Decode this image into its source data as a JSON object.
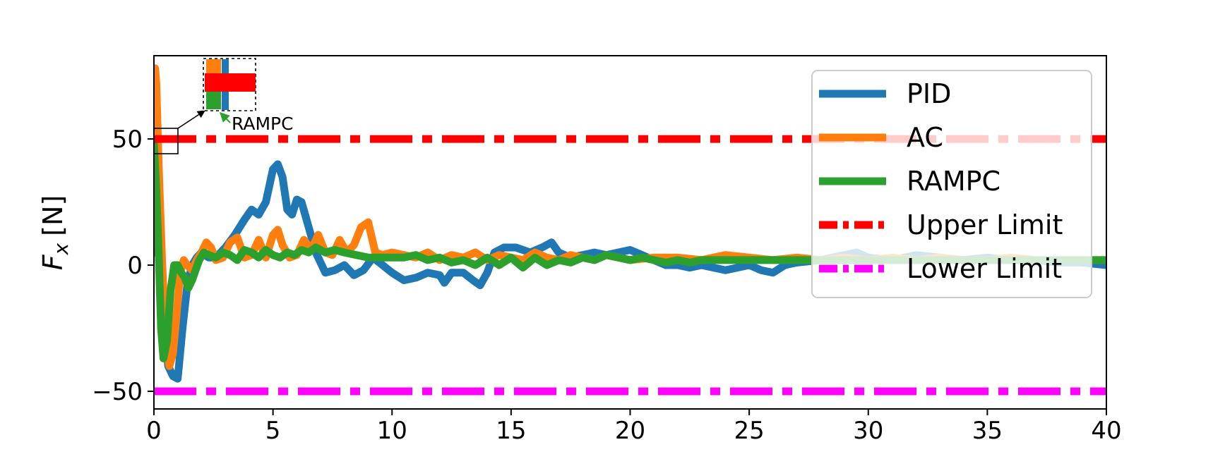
{
  "chart_data": {
    "type": "line",
    "title": "",
    "xlabel": "",
    "ylabel_main": "F",
    "ylabel_sub": "x",
    "ylabel_unit": "[N]",
    "xlim": [
      0,
      40
    ],
    "ylim": [
      -57,
      83
    ],
    "xticks": [
      0,
      5,
      10,
      15,
      20,
      25,
      30,
      35,
      40
    ],
    "yticks": [
      -50,
      0,
      50
    ],
    "ytick_labels": [
      "−50",
      "0",
      "50"
    ],
    "grid": false,
    "legend_position": "top-right",
    "series": [
      {
        "name": "PID",
        "color": "#1f77b4",
        "x": [
          0,
          0.1,
          0.2,
          0.3,
          0.45,
          0.6,
          0.8,
          1.0,
          1.2,
          1.4,
          1.6,
          1.8,
          2.0,
          2.3,
          2.6,
          3.0,
          3.4,
          3.8,
          4.1,
          4.4,
          4.7,
          5.0,
          5.2,
          5.4,
          5.6,
          5.8,
          6.0,
          6.2,
          6.5,
          6.8,
          7.2,
          7.6,
          8.0,
          8.4,
          8.8,
          9.2,
          9.6,
          10.0,
          10.5,
          11.0,
          11.5,
          12.0,
          12.2,
          12.5,
          13.0,
          13.4,
          13.7,
          14.0,
          14.3,
          14.7,
          15.2,
          15.8,
          16.3,
          16.7,
          17.0,
          17.5,
          18.0,
          18.5,
          19.0,
          19.5,
          20.0,
          20.5,
          21.0,
          21.5,
          22.0,
          22.5,
          23.0,
          23.5,
          24.0,
          24.5,
          25.0,
          25.5,
          26.0,
          26.5,
          27.0,
          28.0,
          29.0,
          29.5,
          30.0,
          31.0,
          32.0,
          33.0,
          34.0,
          35.0,
          36.0,
          37.0,
          38.0,
          39.0,
          40.0
        ],
        "y": [
          5,
          40,
          30,
          -5,
          -25,
          -40,
          -44,
          -45,
          -25,
          -8,
          0,
          3,
          5,
          3,
          3,
          7,
          12,
          18,
          22,
          20,
          25,
          38,
          40,
          35,
          22,
          20,
          26,
          25,
          15,
          5,
          -3,
          -2,
          0,
          -4,
          -2,
          3,
          0,
          -3,
          -6,
          -5,
          -3,
          -4,
          -7,
          -3,
          -3,
          -6,
          -8,
          -3,
          5,
          7,
          7,
          5,
          7,
          9,
          5,
          3,
          4,
          5,
          4,
          5,
          6,
          4,
          2,
          0,
          0,
          -1,
          0,
          -1,
          -2,
          -1,
          0,
          -2,
          -3,
          0,
          1,
          2,
          4,
          5,
          3,
          2,
          4,
          3,
          2,
          3,
          2,
          2,
          1,
          1,
          0
        ]
      },
      {
        "name": "AC",
        "color": "#ff7f0e",
        "x": [
          0,
          0.05,
          0.1,
          0.2,
          0.35,
          0.5,
          0.65,
          0.8,
          0.95,
          1.1,
          1.25,
          1.4,
          1.6,
          1.8,
          2.0,
          2.2,
          2.4,
          2.6,
          2.9,
          3.2,
          3.5,
          3.8,
          4.1,
          4.4,
          4.7,
          5.0,
          5.2,
          5.4,
          5.7,
          6.0,
          6.3,
          6.6,
          6.9,
          7.2,
          7.5,
          7.8,
          8.1,
          8.4,
          8.7,
          9.0,
          9.3,
          9.6,
          10.0,
          10.5,
          11.0,
          11.5,
          12.0,
          12.5,
          13.0,
          13.5,
          14.0,
          14.5,
          15.0,
          15.5,
          16.0,
          16.5,
          17.0,
          17.5,
          18.0,
          18.5,
          19.0,
          19.5,
          20.0,
          21.0,
          22.0,
          23.0,
          24.0,
          25.0,
          26.0,
          27.0,
          28.0,
          29.0,
          30.0,
          31.0,
          32.0,
          33.0,
          34.0,
          35.0,
          36.0,
          37.0,
          38.0,
          39.0,
          40.0
        ],
        "y": [
          65,
          78,
          72,
          40,
          0,
          -30,
          -40,
          -35,
          -20,
          -3,
          2,
          0,
          -2,
          2,
          5,
          9,
          7,
          2,
          3,
          9,
          11,
          3,
          4,
          10,
          3,
          12,
          14,
          8,
          3,
          4,
          10,
          6,
          12,
          5,
          4,
          10,
          5,
          8,
          15,
          17,
          5,
          4,
          5,
          4,
          3,
          5,
          2,
          4,
          3,
          5,
          2,
          4,
          3,
          2,
          5,
          3,
          2,
          4,
          3,
          2,
          4,
          3,
          2,
          3,
          3,
          2,
          4,
          3,
          2,
          3,
          2,
          3,
          2,
          3,
          2,
          3,
          2,
          2,
          3,
          2,
          2,
          2,
          2
        ]
      },
      {
        "name": "RAMPC",
        "color": "#2ca02c",
        "x": [
          0,
          0.1,
          0.2,
          0.3,
          0.4,
          0.55,
          0.7,
          0.85,
          1.0,
          1.15,
          1.3,
          1.45,
          1.6,
          1.75,
          1.9,
          2.1,
          2.3,
          2.6,
          2.9,
          3.2,
          3.5,
          3.8,
          4.1,
          4.4,
          4.7,
          5.0,
          5.3,
          5.6,
          5.9,
          6.2,
          6.5,
          6.8,
          7.2,
          7.6,
          8.0,
          8.5,
          9.0,
          9.5,
          10.0,
          10.5,
          11.0,
          11.5,
          12.0,
          12.5,
          13.0,
          13.5,
          14.0,
          14.5,
          15.0,
          15.5,
          16.0,
          16.5,
          17.0,
          17.5,
          18.0,
          18.5,
          19.0,
          19.5,
          20.0,
          20.5,
          21.0,
          21.5,
          22.0,
          22.5,
          23.0,
          24.0,
          25.0,
          26.0,
          27.0,
          28.0,
          29.0,
          30.0,
          31.0,
          32.0,
          33.0,
          34.0,
          35.0,
          36.0,
          37.0,
          38.0,
          39.0,
          40.0
        ],
        "y": [
          48,
          30,
          5,
          -25,
          -37,
          -30,
          -10,
          0,
          0,
          -3,
          -5,
          -9,
          -6,
          -2,
          2,
          5,
          4,
          3,
          5,
          4,
          2,
          6,
          5,
          3,
          6,
          4,
          3,
          5,
          4,
          6,
          5,
          7,
          5,
          6,
          5,
          4,
          3,
          3,
          3,
          3,
          4,
          2,
          3,
          1,
          2,
          0,
          3,
          0,
          3,
          -1,
          3,
          0,
          2,
          1,
          3,
          2,
          4,
          3,
          2,
          3,
          2,
          1,
          2,
          1,
          2,
          2,
          2,
          2,
          2,
          2,
          2,
          2,
          2,
          2,
          2,
          2,
          2,
          2,
          2,
          2,
          2,
          2
        ]
      },
      {
        "name": "Upper Limit",
        "color": "#ff0000",
        "x": [
          0,
          40
        ],
        "y": [
          50,
          50
        ]
      },
      {
        "name": "Lower Limit",
        "color": "#ff00ff",
        "x": [
          0,
          40
        ],
        "y": [
          -50,
          -50
        ]
      }
    ],
    "inset": {
      "annotation": "RAMPC",
      "zoom_box_x": [
        0,
        1.0
      ],
      "zoom_box_y": [
        45,
        55
      ]
    }
  }
}
